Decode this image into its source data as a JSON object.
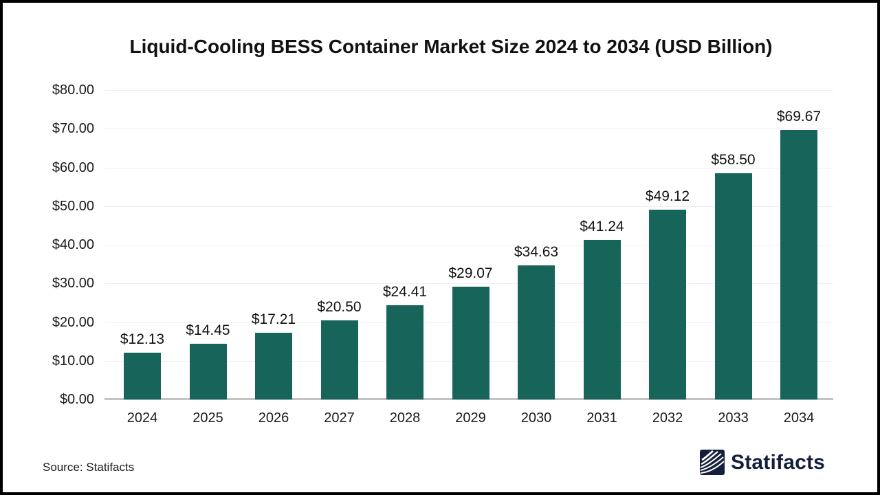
{
  "title": "Liquid-Cooling BESS Container Market Size 2024 to 2034 (USD Billion)",
  "source": "Source: Statifacts",
  "logo": {
    "text": "Statifacts",
    "icon": "statifacts-waves-icon"
  },
  "colors": {
    "bar": "#17655a",
    "gridline": "#efefef",
    "axis_line": "#c3c3c3",
    "text": "#1a1a1a",
    "logo_navy": "#141f3c",
    "background": "#ffffff",
    "frame_border": "#000000"
  },
  "chart_data": {
    "type": "bar",
    "title": "Liquid-Cooling BESS Container Market Size 2024 to 2034 (USD Billion)",
    "categories": [
      "2024",
      "2025",
      "2026",
      "2027",
      "2028",
      "2029",
      "2030",
      "2031",
      "2032",
      "2033",
      "2034"
    ],
    "values": [
      12.13,
      14.45,
      17.21,
      20.5,
      24.41,
      29.07,
      34.63,
      41.24,
      49.12,
      58.5,
      69.67
    ],
    "value_labels": [
      "$12.13",
      "$14.45",
      "$17.21",
      "$20.50",
      "$24.41",
      "$29.07",
      "$34.63",
      "$41.24",
      "$49.12",
      "$58.50",
      "$69.67"
    ],
    "xlabel": "",
    "ylabel": "",
    "ylim": [
      0,
      80
    ],
    "yticks": [
      {
        "value": 0,
        "label": "$0.00"
      },
      {
        "value": 10,
        "label": "$10.00"
      },
      {
        "value": 20,
        "label": "$20.00"
      },
      {
        "value": 30,
        "label": "$30.00"
      },
      {
        "value": 40,
        "label": "$40.00"
      },
      {
        "value": 50,
        "label": "$50.00"
      },
      {
        "value": 60,
        "label": "$60.00"
      },
      {
        "value": 70,
        "label": "$70.00"
      },
      {
        "value": 80,
        "label": "$80.00"
      }
    ],
    "grid": true,
    "legend": false,
    "bar_color": "#17655a"
  }
}
